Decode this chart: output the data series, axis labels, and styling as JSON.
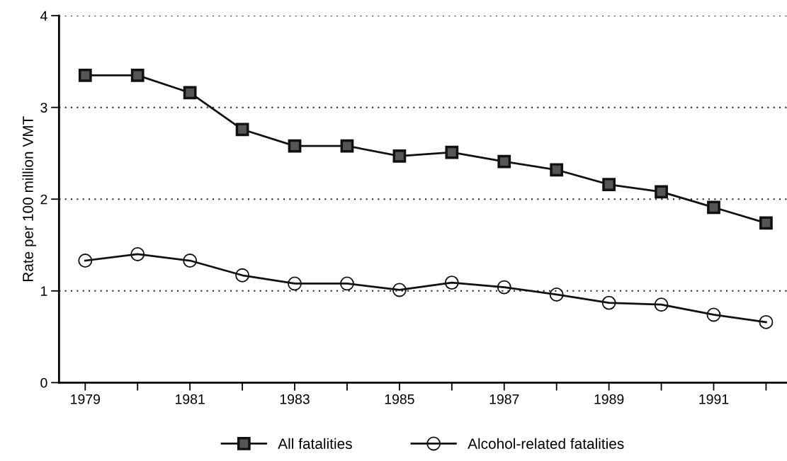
{
  "chart_data": {
    "type": "line",
    "ylabel": "Rate per 100 million VMT",
    "x": [
      1979,
      1980,
      1981,
      1982,
      1983,
      1984,
      1985,
      1986,
      1987,
      1988,
      1989,
      1990,
      1991,
      1992
    ],
    "series": [
      {
        "name": "All fatalities",
        "color": "#111111",
        "marker": "square",
        "values": [
          3.35,
          3.35,
          3.16,
          2.76,
          2.58,
          2.58,
          2.47,
          2.51,
          2.41,
          2.32,
          2.16,
          2.08,
          1.91,
          1.74
        ]
      },
      {
        "name": "Alcohol-related fatalities",
        "color": "#111111",
        "marker": "circle",
        "values": [
          1.33,
          1.4,
          1.33,
          1.17,
          1.08,
          1.08,
          1.01,
          1.09,
          1.04,
          0.96,
          0.87,
          0.85,
          0.74,
          0.66
        ]
      }
    ],
    "xlim": [
      1978.5,
      1992.4
    ],
    "ylim": [
      0,
      4
    ],
    "xticks": [
      1979,
      {
        "value": 1980,
        "label": null
      },
      1981,
      {
        "value": 1982,
        "label": null
      },
      1983,
      {
        "value": 1984,
        "label": null
      },
      1985,
      {
        "value": 1986,
        "label": null
      },
      1987,
      {
        "value": 1988,
        "label": null
      },
      1989,
      {
        "value": 1990,
        "label": null
      },
      1991,
      {
        "value": 1992,
        "label": null
      }
    ],
    "yticks": [
      0,
      1,
      2,
      3,
      4
    ],
    "grid": "y",
    "legend": "bottom",
    "line_style": "solid"
  }
}
